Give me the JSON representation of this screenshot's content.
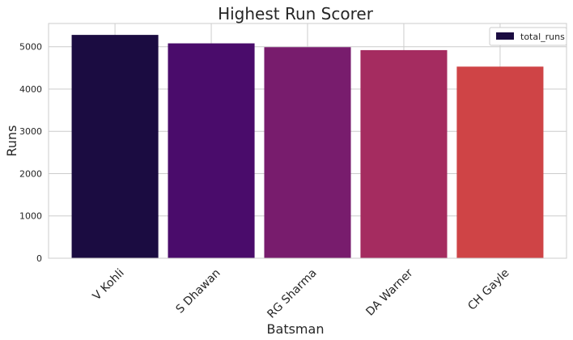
{
  "chart_data": {
    "type": "bar",
    "title": "Highest Run Scorer",
    "xlabel": "Batsman",
    "ylabel": "Runs",
    "categories": [
      "V Kohli",
      "S Dhawan",
      "RG Sharma",
      "DA Warner",
      "CH Gayle"
    ],
    "series": [
      {
        "name": "total_runs",
        "values": [
          5280,
          5080,
          4990,
          4920,
          4530
        ]
      }
    ],
    "colors": [
      "#1b0c41",
      "#4a0c6b",
      "#781c6d",
      "#a52c60",
      "#cf4446"
    ],
    "legend_swatch_color": "#1b0c41",
    "ylim": [
      0,
      5550
    ],
    "yticks": [
      0,
      1000,
      2000,
      3000,
      4000,
      5000
    ],
    "grid": true,
    "legend_position": "top-right",
    "xtick_rotation": -45
  }
}
